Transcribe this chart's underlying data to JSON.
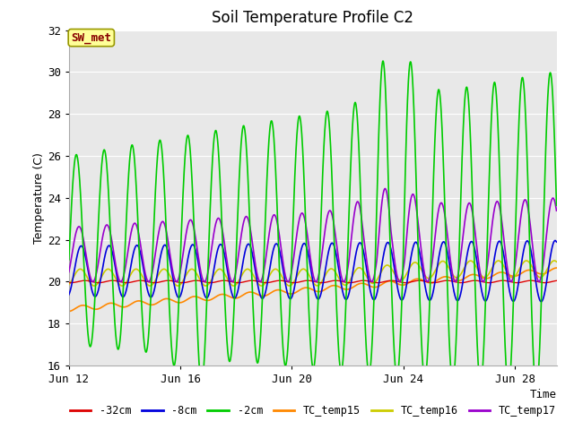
{
  "title": "Soil Temperature Profile C2",
  "xlabel": "Time",
  "ylabel": "Temperature (C)",
  "ylim": [
    16,
    32
  ],
  "xlim_days": [
    0,
    17.5
  ],
  "x_ticks_days": [
    0,
    4,
    8,
    12,
    16
  ],
  "x_tick_labels": [
    "Jun 12",
    "Jun 16",
    "Jun 20",
    "Jun 24",
    "Jun 28"
  ],
  "y_ticks": [
    16,
    18,
    20,
    22,
    24,
    26,
    28,
    30,
    32
  ],
  "bg_color": "#e8e8e8",
  "fig_color": "#ffffff",
  "line_colors": {
    "cm32": "#dd0000",
    "cm8": "#0000dd",
    "cm2": "#00cc00",
    "tc15": "#ff8800",
    "tc16": "#cccc00",
    "tc17": "#9900cc"
  },
  "legend_labels": [
    "-32cm",
    "-8cm",
    "-2cm",
    "TC_temp15",
    "TC_temp16",
    "TC_temp17"
  ],
  "sw_met_text": "SW_met",
  "sw_met_bg": "#ffff99",
  "sw_met_border": "#999900",
  "sw_met_textcolor": "#880000"
}
